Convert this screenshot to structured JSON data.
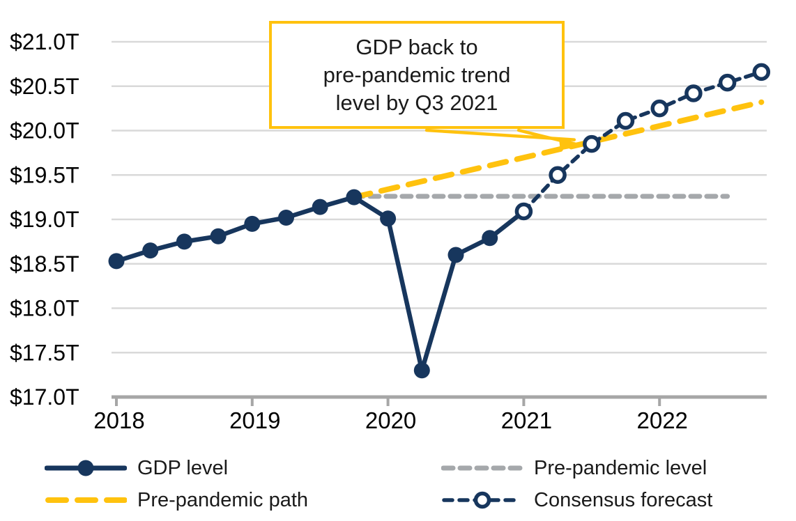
{
  "chart_data": {
    "type": "line",
    "title": "",
    "x_axis": {
      "tick_labels": [
        "2018",
        "2019",
        "2020",
        "2021",
        "2022"
      ],
      "unit": "quarters"
    },
    "y_axis": {
      "tick_labels": [
        "$21.0T",
        "$20.5T",
        "$20.0T",
        "$19.5T",
        "$19.0T",
        "$18.5T",
        "$18.0T",
        "$17.5T",
        "$17.0T"
      ],
      "min": 17.0,
      "max": 21.0,
      "step": 0.5,
      "grid": true
    },
    "series": [
      {
        "name": "GDP level",
        "type": "line",
        "style": "solid",
        "color": "#17365D",
        "marker": "filled-circle",
        "last_point_open": true,
        "quarters": [
          "2018Q1",
          "2018Q2",
          "2018Q3",
          "2018Q4",
          "2019Q1",
          "2019Q2",
          "2019Q3",
          "2019Q4",
          "2020Q1",
          "2020Q2",
          "2020Q3",
          "2020Q4",
          "2021Q1"
        ],
        "values": [
          18.53,
          18.65,
          18.75,
          18.81,
          18.95,
          19.02,
          19.14,
          19.25,
          19.01,
          17.3,
          18.6,
          18.79,
          19.09
        ]
      },
      {
        "name": "Pre-pandemic level",
        "type": "line",
        "style": "dashed",
        "color": "#A5A8AB",
        "marker": "none",
        "quarters": [
          "2019Q4",
          "2022Q3"
        ],
        "values": [
          19.26,
          19.26
        ]
      },
      {
        "name": "Pre-pandemic path",
        "type": "line",
        "style": "dashed-long",
        "color": "#FFC20E",
        "marker": "none",
        "quarters": [
          "2019Q4",
          "2022Q4"
        ],
        "values": [
          19.25,
          20.32
        ]
      },
      {
        "name": "Consensus forecast",
        "type": "line",
        "style": "dashed",
        "color": "#17365D",
        "marker": "open-circle",
        "quarters": [
          "2021Q1",
          "2021Q2",
          "2021Q3",
          "2021Q4",
          "2022Q1",
          "2022Q2",
          "2022Q3",
          "2022Q4"
        ],
        "values": [
          19.09,
          19.5,
          19.85,
          20.11,
          20.25,
          20.42,
          20.54,
          20.66
        ]
      }
    ],
    "legend": [
      {
        "label": "GDP level"
      },
      {
        "label": "Pre-pandemic path"
      },
      {
        "label": "Pre-pandemic level"
      },
      {
        "label": "Consensus forecast"
      }
    ],
    "annotation": {
      "lines": [
        "GDP back to",
        "pre-pandemic trend",
        "level by Q3 2021"
      ],
      "target_quarter": "2021Q3",
      "target_value": 19.85,
      "box_color": "#FFC20E"
    },
    "colors": {
      "navy": "#17365D",
      "yellow": "#FFC20E",
      "gray_dash": "#A5A8AB",
      "gridline": "#D9D9D9",
      "axis": "#A6A6A6",
      "text": "#1a1a1a"
    },
    "legend_position": "bottom"
  }
}
